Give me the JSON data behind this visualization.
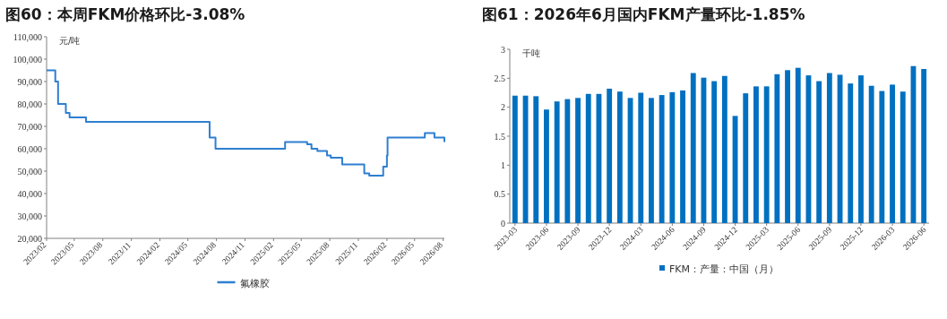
{
  "chart_data": [
    {
      "type": "step",
      "title": "图60：本周FKM价格环比-3.08%",
      "ylabel": "元/吨",
      "x": [
        "2023-02-01",
        "2023-03-01",
        "2023-03-10",
        "2023-04-04",
        "2023-04-16",
        "2023-06-08",
        "2024-07-10",
        "2024-07-29",
        "2025-03-10",
        "2025-05-20",
        "2025-06-03",
        "2025-06-22",
        "2025-07-23",
        "2025-08-04",
        "2025-09-10",
        "2025-11-20",
        "2025-12-06",
        "2026-01-20",
        "2026-02-01",
        "2026-02-03",
        "2026-06-03",
        "2026-07-04",
        "2026-08-05"
      ],
      "series": [
        {
          "name": "氟橡胶",
          "color": "#2f7fd1",
          "values": [
            95000,
            90000,
            80000,
            76000,
            74000,
            72000,
            65000,
            60000,
            63000,
            62000,
            60000,
            59000,
            57000,
            56000,
            53000,
            49000,
            48000,
            52000,
            57000,
            65000,
            67000,
            65000,
            63000
          ]
        }
      ],
      "xlim": [
        "2023-02-01",
        "2026-08-05"
      ],
      "xticks": [
        {
          "value": "2023-02",
          "label": "2023/02"
        },
        {
          "value": "2023-05",
          "label": "2023/05"
        },
        {
          "value": "2023-08",
          "label": "2023/08"
        },
        {
          "value": "2023-11",
          "label": "2023/11"
        },
        {
          "value": "2024-02",
          "label": "2024/02"
        },
        {
          "value": "2024-05",
          "label": "2024/05"
        },
        {
          "value": "2024-08",
          "label": "2024/08"
        },
        {
          "value": "2024-11",
          "label": "2024/11"
        },
        {
          "value": "2025-02",
          "label": "2025/02"
        },
        {
          "value": "2025-05",
          "label": "2025/05"
        },
        {
          "value": "2025-08",
          "label": "2025/08"
        },
        {
          "value": "2025-11",
          "label": "2025/11"
        },
        {
          "value": "2026-02",
          "label": "2026/02"
        },
        {
          "value": "2026-05",
          "label": "2026/05"
        },
        {
          "value": "2026-08",
          "label": "2026/08"
        }
      ],
      "ylim": [
        20000,
        110000
      ],
      "yticks": [
        {
          "value": 20000,
          "label": "20,000"
        },
        {
          "value": 30000,
          "label": "30,000"
        },
        {
          "value": 40000,
          "label": "40,000"
        },
        {
          "value": 50000,
          "label": "50,000"
        },
        {
          "value": 60000,
          "label": "60,000"
        },
        {
          "value": 70000,
          "label": "70,000"
        },
        {
          "value": 80000,
          "label": "80,000"
        },
        {
          "value": 90000,
          "label": "90,000"
        },
        {
          "value": 100000,
          "label": "100,000"
        },
        {
          "value": 110000,
          "label": "110,000"
        }
      ],
      "legend": "bottom",
      "grid": false
    },
    {
      "type": "bar",
      "title": "图61：2026年6月国内FKM产量环比-1.85%",
      "ylabel": "千吨",
      "categories": [
        "2023-03",
        null,
        null,
        "2023-06",
        null,
        null,
        "2023-09",
        null,
        null,
        "2023-12",
        null,
        null,
        "2024-03",
        null,
        null,
        "2024-06",
        null,
        null,
        "2024-09",
        null,
        null,
        "2024-12",
        null,
        null,
        "2025-03",
        null,
        null,
        "2025-06",
        null,
        null,
        "2025-09",
        null,
        null,
        "2025-12",
        null,
        null,
        "2026-03",
        null,
        null,
        "2026-06"
      ],
      "series": [
        {
          "name": "FKM：产量：中国（月）",
          "color": "#0070c0",
          "values": [
            2.2,
            2.2,
            2.19,
            1.96,
            2.1,
            2.14,
            2.16,
            2.23,
            2.23,
            2.32,
            2.27,
            2.16,
            2.25,
            2.16,
            2.21,
            2.26,
            2.29,
            2.59,
            2.51,
            2.45,
            2.54,
            1.85,
            2.24,
            2.36,
            2.36,
            2.57,
            2.64,
            2.68,
            2.55,
            2.45,
            2.59,
            2.56,
            2.41,
            2.55,
            2.37,
            2.28,
            2.39,
            2.27,
            2.71,
            2.66
          ]
        }
      ],
      "ylim": [
        0,
        3
      ],
      "yticks": [
        0,
        0.5,
        1,
        1.5,
        2,
        2.5,
        3
      ],
      "legend": "bottom",
      "grid": false
    }
  ]
}
